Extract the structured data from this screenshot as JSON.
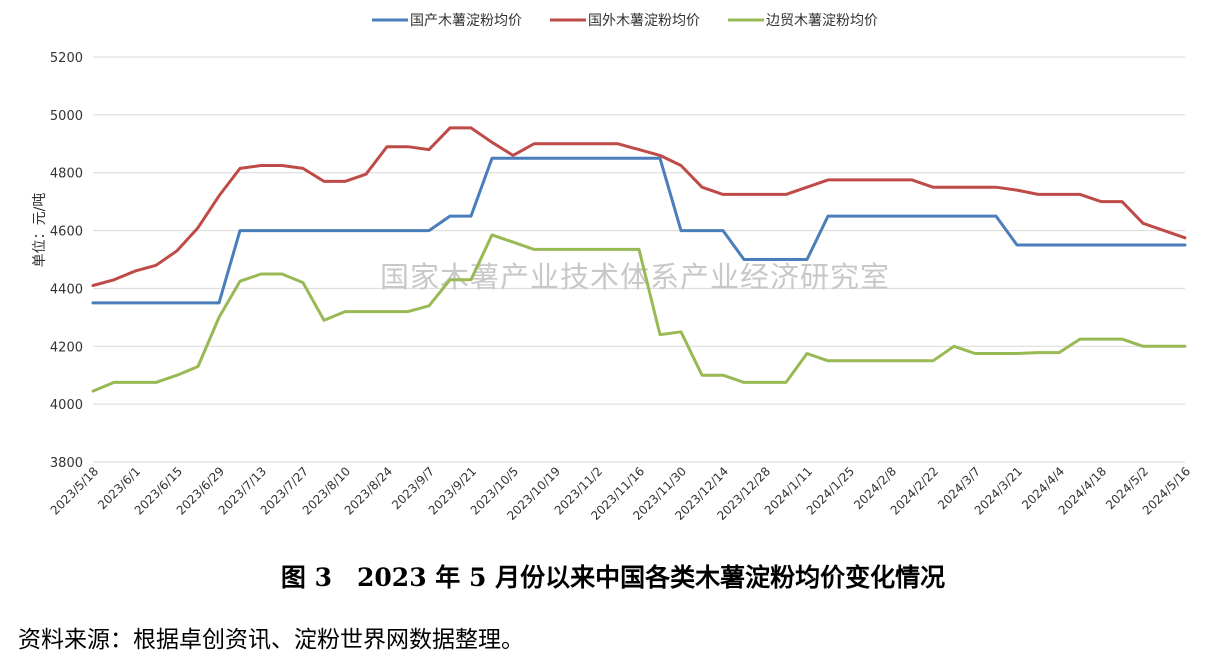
{
  "chart_data": {
    "type": "line",
    "ylabel": "单位：元/吨",
    "ylim": [
      3800,
      5200
    ],
    "yticks": [
      3800,
      4000,
      4200,
      4400,
      4600,
      4800,
      5000,
      5200
    ],
    "grid": true,
    "legend_position": "top",
    "watermark": "国家木薯产业技术体系产业经济研究室",
    "x": [
      "2023/5/18",
      "2023/5/25",
      "2023/6/1",
      "2023/6/8",
      "2023/6/15",
      "2023/6/22",
      "2023/6/29",
      "2023/7/6",
      "2023/7/13",
      "2023/7/20",
      "2023/7/27",
      "2023/8/3",
      "2023/8/10",
      "2023/8/17",
      "2023/8/24",
      "2023/8/31",
      "2023/9/7",
      "2023/9/14",
      "2023/9/21",
      "2023/9/28",
      "2023/10/5",
      "2023/10/12",
      "2023/10/19",
      "2023/10/26",
      "2023/11/2",
      "2023/11/9",
      "2023/11/16",
      "2023/11/23",
      "2023/11/30",
      "2023/12/7",
      "2023/12/14",
      "2023/12/21",
      "2023/12/28",
      "2024/1/4",
      "2024/1/11",
      "2024/1/18",
      "2024/1/25",
      "2024/2/1",
      "2024/2/8",
      "2024/2/15",
      "2024/2/22",
      "2024/2/29",
      "2024/3/7",
      "2024/3/14",
      "2024/3/21",
      "2024/3/28",
      "2024/4/4",
      "2024/4/11",
      "2024/4/18",
      "2024/4/25",
      "2024/5/2",
      "2024/5/9",
      "2024/5/16"
    ],
    "tick_labels": [
      "2023/5/18",
      "2023/6/1",
      "2023/6/15",
      "2023/6/29",
      "2023/7/13",
      "2023/7/27",
      "2023/8/10",
      "2023/8/24",
      "2023/9/7",
      "2023/9/21",
      "2023/10/5",
      "2023/10/19",
      "2023/11/2",
      "2023/11/16",
      "2023/11/30",
      "2023/12/14",
      "2023/12/28",
      "2024/1/11",
      "2024/1/25",
      "2024/2/8",
      "2024/2/22",
      "2024/3/7",
      "2024/3/21",
      "2024/4/4",
      "2024/4/18",
      "2024/5/2",
      "2024/5/16"
    ],
    "series": [
      {
        "name": "国产木薯淀粉均价",
        "color": "#4a7ebb",
        "values": [
          4350,
          4350,
          4350,
          4350,
          4350,
          4350,
          4350,
          4600,
          4600,
          4600,
          4600,
          4600,
          4600,
          4600,
          4600,
          4600,
          4600,
          4650,
          4650,
          4850,
          4850,
          4850,
          4850,
          4850,
          4850,
          4850,
          4850,
          4850,
          4600,
          4600,
          4600,
          4500,
          4500,
          4500,
          4500,
          4650,
          4650,
          4650,
          4650,
          4650,
          4650,
          4650,
          4650,
          4650,
          4550,
          4550,
          4550,
          4550,
          4550,
          4550,
          4550,
          4550,
          4550
        ]
      },
      {
        "name": "国外木薯淀粉均价",
        "color": "#be4b48",
        "values": [
          4410,
          4430,
          4460,
          4480,
          4530,
          4610,
          4720,
          4815,
          4825,
          4825,
          4815,
          4770,
          4770,
          4795,
          4890,
          4890,
          4880,
          4955,
          4955,
          4905,
          4860,
          4900,
          4900,
          4900,
          4900,
          4900,
          4880,
          4860,
          4825,
          4750,
          4725,
          4725,
          4725,
          4725,
          4750,
          4775,
          4775,
          4775,
          4775,
          4775,
          4750,
          4750,
          4750,
          4750,
          4740,
          4725,
          4725,
          4725,
          4700,
          4700,
          4625,
          4600,
          4575
        ]
      },
      {
        "name": "边贸木薯淀粉均价",
        "color": "#98b954",
        "values": [
          4045,
          4075,
          4075,
          4075,
          4100,
          4130,
          4300,
          4425,
          4450,
          4450,
          4420,
          4290,
          4320,
          4320,
          4320,
          4320,
          4340,
          4430,
          4430,
          4585,
          4560,
          4535,
          4535,
          4535,
          4535,
          4535,
          4535,
          4240,
          4250,
          4100,
          4100,
          4075,
          4075,
          4075,
          4175,
          4150,
          4150,
          4150,
          4150,
          4150,
          4150,
          4200,
          4175,
          4175,
          4175,
          4178,
          4178,
          4225,
          4225,
          4225,
          4200,
          4200,
          4200
        ]
      }
    ]
  },
  "caption": "图 3　2023 年 5 月份以来中国各类木薯淀粉均价变化情况",
  "source": "资料来源：根据卓创资讯、淀粉世界网数据整理。"
}
